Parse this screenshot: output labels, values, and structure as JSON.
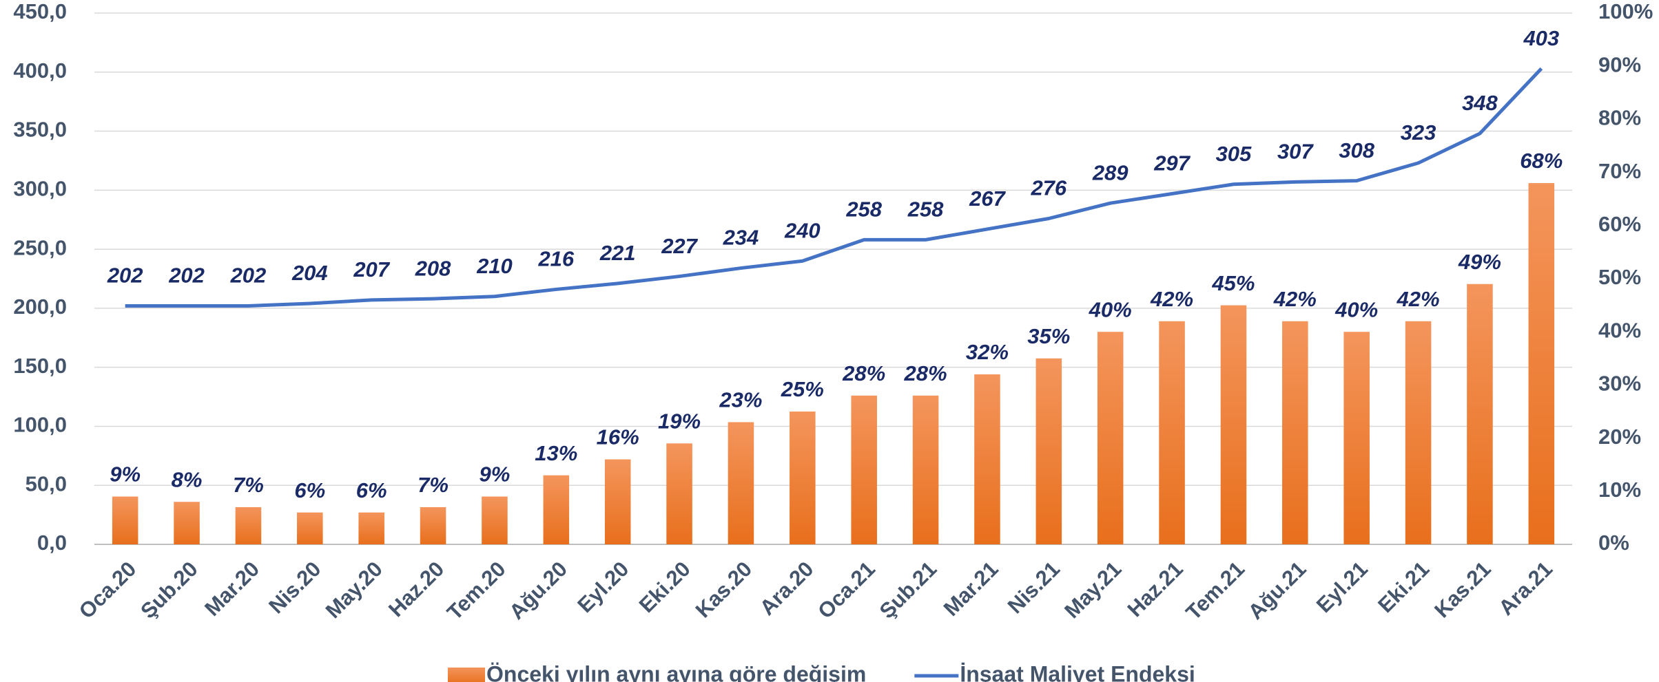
{
  "chart_data": {
    "type": "bar_line",
    "categories": [
      "Oca.20",
      "Şub.20",
      "Mar.20",
      "Nis.20",
      "May.20",
      "Haz.20",
      "Tem.20",
      "Ağu.20",
      "Eyl.20",
      "Eki.20",
      "Kas.20",
      "Ara.20",
      "Oca.21",
      "Şub.21",
      "Mar.21",
      "Nis.21",
      "May.21",
      "Haz.21",
      "Tem.21",
      "Ağu.21",
      "Eyl.21",
      "Eki.21",
      "Kas.21",
      "Ara.21"
    ],
    "series": [
      {
        "name": "Önceki yılın aynı ayına göre değişim",
        "type": "bar",
        "axis": "y2",
        "color": "#ec7a2c",
        "values": [
          9,
          8,
          7,
          6,
          6,
          7,
          9,
          13,
          16,
          19,
          23,
          25,
          28,
          28,
          32,
          35,
          40,
          42,
          45,
          42,
          40,
          42,
          49,
          68
        ],
        "value_labels": [
          "9%",
          "8%",
          "7%",
          "6%",
          "6%",
          "7%",
          "9%",
          "13%",
          "16%",
          "19%",
          "23%",
          "25%",
          "28%",
          "28%",
          "32%",
          "35%",
          "40%",
          "42%",
          "45%",
          "42%",
          "40%",
          "42%",
          "49%",
          "68%"
        ]
      },
      {
        "name": "İnşaat Maliyet Endeksi",
        "type": "line",
        "axis": "y",
        "color": "#4472c4",
        "values": [
          202,
          202,
          202,
          204,
          207,
          208,
          210,
          216,
          221,
          227,
          234,
          240,
          258,
          258,
          267,
          276,
          289,
          297,
          305,
          307,
          308,
          323,
          348,
          403
        ]
      }
    ],
    "ylim": [
      0,
      450
    ],
    "yticks": [
      {
        "value": 0,
        "label": "0,0"
      },
      {
        "value": 50,
        "label": "50,0"
      },
      {
        "value": 100,
        "label": "100,0"
      },
      {
        "value": 150,
        "label": "150,0"
      },
      {
        "value": 200,
        "label": "200,0"
      },
      {
        "value": 250,
        "label": "250,0"
      },
      {
        "value": 300,
        "label": "300,0"
      },
      {
        "value": 350,
        "label": "350,0"
      },
      {
        "value": 400,
        "label": "400,0"
      },
      {
        "value": 450,
        "label": "450,0"
      }
    ],
    "y2lim": [
      0,
      100
    ],
    "y2ticks": [
      {
        "value": 0,
        "label": "0%"
      },
      {
        "value": 10,
        "label": "10%"
      },
      {
        "value": 20,
        "label": "20%"
      },
      {
        "value": 30,
        "label": "30%"
      },
      {
        "value": 40,
        "label": "40%"
      },
      {
        "value": 50,
        "label": "50%"
      },
      {
        "value": 60,
        "label": "60%"
      },
      {
        "value": 70,
        "label": "70%"
      },
      {
        "value": 80,
        "label": "80%"
      },
      {
        "value": 90,
        "label": "90%"
      },
      {
        "value": 100,
        "label": "100%"
      }
    ],
    "grid": true,
    "legend": "bottom"
  }
}
